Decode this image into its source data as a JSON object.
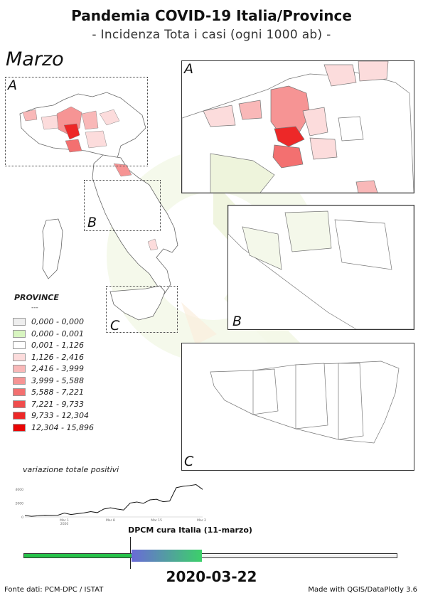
{
  "header": {
    "title": "Pandemia COVID-19 Italia/Province",
    "subtitle": "- Incidenza Tota i casi (ogni 1000 ab) -",
    "month": "Marzo"
  },
  "insets": {
    "a_label": "A",
    "b_label": "B",
    "c_label": "C"
  },
  "legend": {
    "title": "PROVINCE",
    "dash": "---",
    "classes": [
      {
        "label": "0,000 - 0,000",
        "color": "#eeeeee"
      },
      {
        "label": "0,000 - 0,001",
        "color": "#d8f5c0"
      },
      {
        "label": "0,001 - 1,126",
        "color": "#ffffff"
      },
      {
        "label": "1,126 - 2,416",
        "color": "#fcdcdc"
      },
      {
        "label": "2,416 - 3,999",
        "color": "#f9b8b8"
      },
      {
        "label": "3,999 - 5,588",
        "color": "#f69494"
      },
      {
        "label": "5,588 - 7,221",
        "color": "#f37070"
      },
      {
        "label": "7,221 - 9,733",
        "color": "#f04c4c"
      },
      {
        "label": "9,733 - 12,304",
        "color": "#ed2828"
      },
      {
        "label": "12,304 - 15,896",
        "color": "#ea0404"
      }
    ]
  },
  "chart_title": "variazione totale positivi",
  "chart_data": {
    "type": "line",
    "title": "variazione totale positivi",
    "x_ticks": [
      "Mar 1\n2020",
      "Mar 8",
      "Mar 15",
      "Mar 22"
    ],
    "y_ticks": [
      0,
      2000,
      4000
    ],
    "ylim": [
      0,
      4800
    ],
    "x": [
      "2020-02-24",
      "2020-02-25",
      "2020-02-26",
      "2020-02-27",
      "2020-02-28",
      "2020-02-29",
      "2020-03-01",
      "2020-03-02",
      "2020-03-03",
      "2020-03-04",
      "2020-03-05",
      "2020-03-06",
      "2020-03-07",
      "2020-03-08",
      "2020-03-09",
      "2020-03-10",
      "2020-03-11",
      "2020-03-12",
      "2020-03-13",
      "2020-03-14",
      "2020-03-15",
      "2020-03-16",
      "2020-03-17",
      "2020-03-18",
      "2020-03-19",
      "2020-03-20",
      "2020-03-21",
      "2020-03-22"
    ],
    "values": [
      220,
      90,
      160,
      260,
      230,
      240,
      560,
      340,
      470,
      590,
      760,
      620,
      1140,
      1320,
      1140,
      1000,
      2000,
      2150,
      1950,
      2450,
      2540,
      2180,
      2280,
      4200,
      4400,
      4500,
      4650,
      3950
    ]
  },
  "timeline": {
    "label": "DPCM cura Italia (11-marzo)",
    "progress": 0.475,
    "marker_fraction": 0.287,
    "colors": {
      "past": "#27c24a",
      "recent_start": "#6a6ad8",
      "recent_end": "#3cd06a",
      "future": "#f2f2f2"
    }
  },
  "date": "2020-03-22",
  "footer": {
    "source": "Fonte dati: PCM-DPC / ISTAT",
    "made_with": "Made with QGIS/DataPlotly 3.6"
  }
}
